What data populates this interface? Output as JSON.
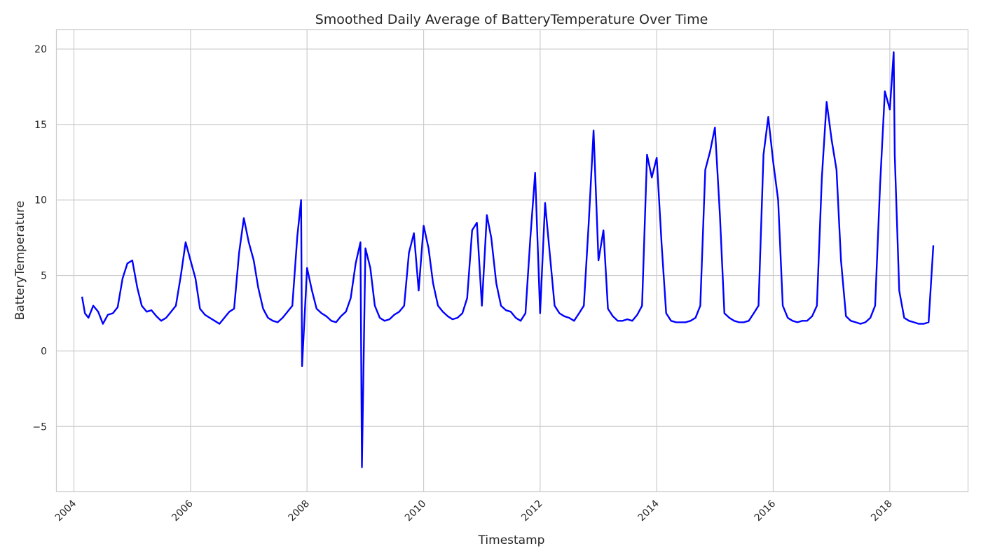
{
  "chart_data": {
    "type": "line",
    "title": "Smoothed Daily Average of BatteryTemperature Over Time",
    "xlabel": "Timestamp",
    "ylabel": "BatteryTemperature",
    "xlim": [
      "2003-09-11",
      "2019-05-04"
    ],
    "ylim": [
      -9.3,
      21.3
    ],
    "x_ticks": [
      "2004",
      "2006",
      "2008",
      "2010",
      "2012",
      "2014",
      "2016",
      "2018"
    ],
    "y_ticks": [
      20,
      15,
      10,
      5,
      0,
      -5
    ],
    "y_tick_labels": [
      "20",
      "15",
      "10",
      "5",
      "0",
      "−5"
    ],
    "grid": true,
    "line_color": "#0000ff",
    "series": [
      {
        "x": [
          "2004-02-21",
          "2004-03-10",
          "2004-04-01",
          "2004-05-01",
          "2004-06-01",
          "2004-07-01",
          "2004-08-01",
          "2004-09-01",
          "2004-10-01",
          "2004-11-01",
          "2004-12-01",
          "2005-01-01",
          "2005-02-01",
          "2005-03-01",
          "2005-04-01",
          "2005-05-01",
          "2005-06-01",
          "2005-07-01",
          "2005-08-01",
          "2005-09-01",
          "2005-10-01",
          "2005-11-01",
          "2005-12-01",
          "2006-01-01",
          "2006-02-01",
          "2006-03-01",
          "2006-04-01",
          "2006-05-01",
          "2006-06-01",
          "2006-07-01",
          "2006-08-01",
          "2006-09-01",
          "2006-10-01",
          "2006-11-01",
          "2006-12-01",
          "2007-01-01",
          "2007-02-01",
          "2007-03-01",
          "2007-04-01",
          "2007-05-01",
          "2007-06-01",
          "2007-07-01",
          "2007-08-01",
          "2007-09-01",
          "2007-10-01",
          "2007-11-01",
          "2007-11-25",
          "2007-12-01",
          "2008-01-01",
          "2008-02-01",
          "2008-03-01",
          "2008-04-01",
          "2008-05-01",
          "2008-06-01",
          "2008-07-01",
          "2008-08-01",
          "2008-09-01",
          "2008-10-01",
          "2008-11-01",
          "2008-12-01",
          "2008-12-10",
          "2009-01-01",
          "2009-02-01",
          "2009-03-01",
          "2009-04-01",
          "2009-05-01",
          "2009-06-01",
          "2009-07-01",
          "2009-08-01",
          "2009-09-01",
          "2009-10-01",
          "2009-11-01",
          "2009-12-01",
          "2010-01-01",
          "2010-02-01",
          "2010-03-01",
          "2010-04-01",
          "2010-05-01",
          "2010-06-01",
          "2010-07-01",
          "2010-08-01",
          "2010-09-01",
          "2010-10-01",
          "2010-11-01",
          "2010-12-01",
          "2011-01-01",
          "2011-02-01",
          "2011-03-01",
          "2011-04-01",
          "2011-05-01",
          "2011-06-01",
          "2011-07-01",
          "2011-08-01",
          "2011-09-01",
          "2011-10-01",
          "2011-11-01",
          "2011-12-01",
          "2012-01-01",
          "2012-02-01",
          "2012-03-01",
          "2012-04-01",
          "2012-05-01",
          "2012-06-01",
          "2012-07-01",
          "2012-08-01",
          "2012-09-01",
          "2012-10-01",
          "2012-11-01",
          "2012-12-01",
          "2013-01-01",
          "2013-02-01",
          "2013-03-01",
          "2013-04-01",
          "2013-05-01",
          "2013-06-01",
          "2013-07-01",
          "2013-08-01",
          "2013-09-01",
          "2013-10-01",
          "2013-11-01",
          "2013-12-01",
          "2014-01-01",
          "2014-02-01",
          "2014-03-01",
          "2014-04-01",
          "2014-05-01",
          "2014-06-01",
          "2014-07-01",
          "2014-08-01",
          "2014-09-01",
          "2014-10-01",
          "2014-11-01",
          "2014-12-01",
          "2015-01-01",
          "2015-02-01",
          "2015-03-01",
          "2015-04-01",
          "2015-05-01",
          "2015-06-01",
          "2015-07-01",
          "2015-08-01",
          "2015-09-01",
          "2015-10-01",
          "2015-11-01",
          "2015-12-01",
          "2016-01-01",
          "2016-02-01",
          "2016-03-01",
          "2016-04-01",
          "2016-05-01",
          "2016-06-01",
          "2016-07-01",
          "2016-08-01",
          "2016-09-01",
          "2016-10-01",
          "2016-11-01",
          "2016-12-01",
          "2017-01-01",
          "2017-02-01",
          "2017-03-01",
          "2017-04-01",
          "2017-05-01",
          "2017-06-01",
          "2017-07-01",
          "2017-08-01",
          "2017-09-01",
          "2017-10-01",
          "2017-11-01",
          "2017-12-01",
          "2018-01-01",
          "2018-01-25",
          "2018-02-01",
          "2018-03-01",
          "2018-04-01",
          "2018-05-01",
          "2018-06-01",
          "2018-07-01",
          "2018-08-01",
          "2018-09-01",
          "2018-10-01"
        ],
        "y": [
          3.6,
          2.5,
          2.2,
          3.0,
          2.6,
          1.8,
          2.4,
          2.5,
          2.9,
          4.8,
          5.8,
          6.0,
          4.2,
          3.0,
          2.6,
          2.7,
          2.3,
          2.0,
          2.2,
          2.6,
          3.0,
          5.0,
          7.2,
          6.0,
          4.8,
          2.8,
          2.4,
          2.2,
          2.0,
          1.8,
          2.2,
          2.6,
          2.8,
          6.5,
          8.8,
          7.2,
          6.0,
          4.2,
          2.8,
          2.2,
          2.0,
          1.9,
          2.2,
          2.6,
          3.0,
          7.6,
          10.0,
          -1.0,
          5.5,
          4.0,
          2.8,
          2.5,
          2.3,
          2.0,
          1.9,
          2.3,
          2.6,
          3.5,
          5.8,
          7.2,
          -7.7,
          6.8,
          5.5,
          3.0,
          2.2,
          2.0,
          2.1,
          2.4,
          2.6,
          3.0,
          6.5,
          7.8,
          4.0,
          8.3,
          6.8,
          4.5,
          3.0,
          2.6,
          2.3,
          2.1,
          2.2,
          2.5,
          3.5,
          8.0,
          8.5,
          3.0,
          9.0,
          7.5,
          4.5,
          3.0,
          2.7,
          2.6,
          2.2,
          2.0,
          2.5,
          7.5,
          11.8,
          2.5,
          9.8,
          6.5,
          3.0,
          2.5,
          2.3,
          2.2,
          2.0,
          2.5,
          3.0,
          8.5,
          14.6,
          6.0,
          8.0,
          2.8,
          2.3,
          2.0,
          2.0,
          2.1,
          2.0,
          2.4,
          3.0,
          13.0,
          11.5,
          12.8,
          7.0,
          2.5,
          2.0,
          1.9,
          1.9,
          1.9,
          2.0,
          2.2,
          3.0,
          12.0,
          13.2,
          14.8,
          9.0,
          2.5,
          2.2,
          2.0,
          1.9,
          1.9,
          2.0,
          2.5,
          3.0,
          13.0,
          15.5,
          12.5,
          10.0,
          3.0,
          2.2,
          2.0,
          1.9,
          2.0,
          2.0,
          2.3,
          3.0,
          11.5,
          16.5,
          14.0,
          12.0,
          6.0,
          2.3,
          2.0,
          1.9,
          1.8,
          1.9,
          2.2,
          3.0,
          11.0,
          17.2,
          16.0,
          19.8,
          13.0,
          4.0,
          2.2,
          2.0,
          1.9,
          1.8,
          1.8,
          1.9,
          7.0
        ]
      }
    ]
  }
}
